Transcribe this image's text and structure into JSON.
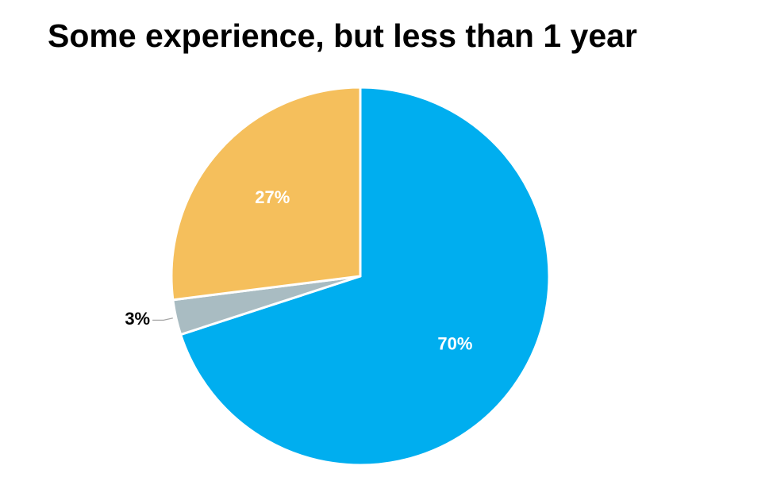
{
  "chart_data": {
    "type": "pie",
    "title": "Some experience, but less than 1 year",
    "categories": [
      "",
      "",
      ""
    ],
    "values": [
      70,
      3,
      27
    ],
    "labels": [
      "70%",
      "3%",
      "27%"
    ],
    "colors": [
      "#00AEEF",
      "#A9BCC2",
      "#F5BF5C"
    ],
    "label_colors": [
      "#ffffff",
      "#000000",
      "#ffffff"
    ],
    "start_angle_deg": 0,
    "direction": "clockwise",
    "legend": "none"
  }
}
